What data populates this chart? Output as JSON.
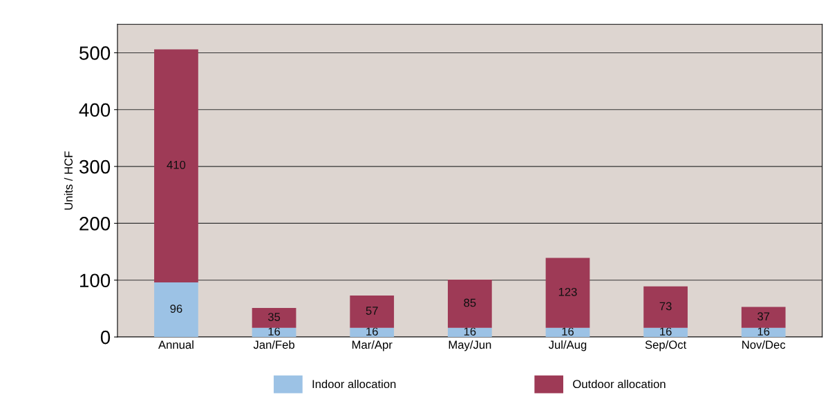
{
  "chart_data": {
    "type": "bar",
    "stacked": true,
    "ylabel": "Units / HCF",
    "categories": [
      "Annual",
      "Jan/Feb",
      "Mar/Apr",
      "May/Jun",
      "Jul/Aug",
      "Sep/Oct",
      "Nov/Dec"
    ],
    "series": [
      {
        "name": "Indoor allocation",
        "color": "#9cc2e5",
        "values": [
          96,
          16,
          16,
          16,
          16,
          16,
          16
        ]
      },
      {
        "name": "Outdoor allocation",
        "color": "#9e3a56",
        "values": [
          410,
          35,
          57,
          85,
          123,
          73,
          37
        ]
      }
    ],
    "ylim": [
      0,
      550
    ],
    "yticks": [
      0,
      100,
      200,
      300,
      400,
      500
    ],
    "grid": "y",
    "legend": "bottom",
    "data_labels": true
  }
}
